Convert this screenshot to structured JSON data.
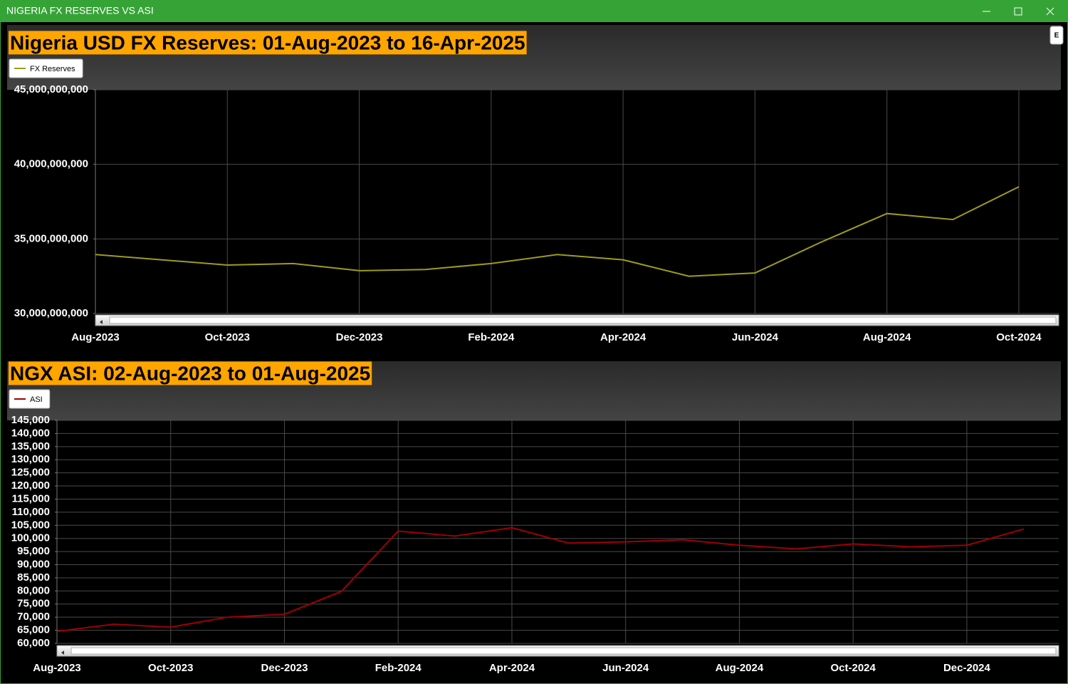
{
  "window": {
    "title": "NIGERIA FX RESERVES VS ASI",
    "button": "E"
  },
  "chart_data": [
    {
      "type": "line",
      "title": "Nigeria USD FX Reserves: 01-Aug-2023 to 16-Apr-2025",
      "x": [
        "Aug-2023",
        "Sep-2023",
        "Oct-2023",
        "Nov-2023",
        "Dec-2023",
        "Jan-2024",
        "Feb-2024",
        "Mar-2024",
        "Apr-2024",
        "May-2024",
        "Jun-2024",
        "Jul-2024",
        "Aug-2024",
        "Sep-2024",
        "Oct-2024"
      ],
      "series": [
        {
          "name": "FX Reserves",
          "color": "#9c9c1e",
          "values": [
            33950000000,
            33600000000,
            33250000000,
            33350000000,
            32870000000,
            32950000000,
            33350000000,
            33950000000,
            33600000000,
            32500000000,
            32720000000,
            34780000000,
            36700000000,
            36300000000,
            38500000000
          ]
        }
      ],
      "ylim": [
        30000000000,
        45000000000
      ],
      "yticks": [
        {
          "value": 30000000000,
          "label": "30,000,000,000"
        },
        {
          "value": 35000000000,
          "label": "35,000,000,000"
        },
        {
          "value": 40000000000,
          "label": "40,000,000,000"
        },
        {
          "value": 45000000000,
          "label": "45,000,000,000"
        }
      ],
      "xticks": [
        "Aug-2023",
        "Oct-2023",
        "Dec-2023",
        "Feb-2024",
        "Apr-2024",
        "Jun-2024",
        "Aug-2024",
        "Oct-2024"
      ],
      "grid": true
    },
    {
      "type": "line",
      "title": "NGX ASI: 02-Aug-2023 to 01-Aug-2025",
      "x": [
        "Aug-2023",
        "Sep-2023",
        "Oct-2023",
        "Nov-2023",
        "Dec-2023",
        "Jan-2024",
        "Feb-2024",
        "Mar-2024",
        "Apr-2024",
        "May-2024",
        "Jun-2024",
        "Jul-2024",
        "Aug-2024",
        "Sep-2024",
        "Oct-2024",
        "Nov-2024",
        "Dec-2024",
        "Jan-2025"
      ],
      "series": [
        {
          "name": "ASI",
          "color": "#a00000",
          "values": [
            64600,
            67300,
            66200,
            70000,
            71100,
            79800,
            102800,
            100900,
            104100,
            98200,
            98700,
            99500,
            97400,
            96000,
            97900,
            96800,
            97400,
            103600
          ]
        }
      ],
      "ylim": [
        60000,
        145000
      ],
      "yticks": [
        {
          "value": 60000,
          "label": "60,000"
        },
        {
          "value": 65000,
          "label": "65,000"
        },
        {
          "value": 70000,
          "label": "70,000"
        },
        {
          "value": 75000,
          "label": "75,000"
        },
        {
          "value": 80000,
          "label": "80,000"
        },
        {
          "value": 85000,
          "label": "85,000"
        },
        {
          "value": 90000,
          "label": "90,000"
        },
        {
          "value": 95000,
          "label": "95,000"
        },
        {
          "value": 100000,
          "label": "100,000"
        },
        {
          "value": 105000,
          "label": "105,000"
        },
        {
          "value": 110000,
          "label": "110,000"
        },
        {
          "value": 115000,
          "label": "115,000"
        },
        {
          "value": 120000,
          "label": "120,000"
        },
        {
          "value": 125000,
          "label": "125,000"
        },
        {
          "value": 130000,
          "label": "130,000"
        },
        {
          "value": 135000,
          "label": "135,000"
        },
        {
          "value": 140000,
          "label": "140,000"
        },
        {
          "value": 145000,
          "label": "145,000"
        }
      ],
      "xticks": [
        "Aug-2023",
        "Oct-2023",
        "Dec-2023",
        "Feb-2024",
        "Apr-2024",
        "Jun-2024",
        "Aug-2024",
        "Oct-2024",
        "Dec-2024"
      ],
      "grid": true
    }
  ]
}
